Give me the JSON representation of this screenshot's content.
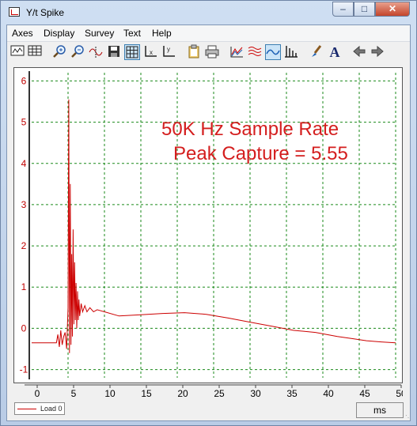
{
  "window": {
    "title": "Y/t Spike"
  },
  "menu": [
    "Axes",
    "Display",
    "Survey",
    "Text",
    "Help"
  ],
  "toolbar_icons": [
    "strip-chart-icon",
    "table-view-icon",
    "zoom-in-icon",
    "zoom-out-icon",
    "cursor-icon",
    "save-icon",
    "grid-icon",
    "x-axis-icon",
    "y-axis-icon",
    "clipboard-icon",
    "print-icon",
    "multi-trace-icon",
    "stacked-trace-icon",
    "single-trace-icon",
    "bar-icon",
    "paint-brush-icon",
    "text-icon",
    "back-arrow-icon",
    "forward-arrow-icon"
  ],
  "toolbar_labels": {
    "text": "A"
  },
  "annotation": {
    "line1": "50K Hz Sample Rate",
    "line2": "Peak Capture = 5.55"
  },
  "legend": {
    "label": "Load 0"
  },
  "units": "ms",
  "chart_data": {
    "type": "line",
    "xlim": [
      0,
      50
    ],
    "ylim": [
      -1.2,
      6.2
    ],
    "x_ticks": [
      0,
      5,
      10,
      15,
      20,
      25,
      30,
      35,
      40,
      45,
      50
    ],
    "y_ticks": [
      -1,
      0,
      1,
      2,
      3,
      4,
      5,
      6
    ],
    "grid": true,
    "series": [
      {
        "name": "Load 0",
        "color": "#cc0000",
        "x": [
          0,
          3.4,
          3.6,
          3.8,
          4.0,
          4.2,
          4.4,
          4.6,
          4.8,
          5.0,
          5.1,
          5.2,
          5.3,
          5.4,
          5.5,
          5.6,
          5.7,
          5.8,
          5.9,
          6.0,
          6.1,
          6.2,
          6.3,
          6.4,
          6.5,
          6.6,
          6.8,
          7.0,
          7.3,
          7.6,
          8.0,
          8.5,
          9.0,
          10,
          12,
          15,
          18,
          21,
          24,
          27,
          30,
          33,
          36,
          39,
          42,
          44,
          46,
          48,
          50
        ],
        "y": [
          -0.35,
          -0.35,
          -0.15,
          -0.45,
          -0.05,
          -0.4,
          -0.2,
          -0.1,
          -0.5,
          0.5,
          5.55,
          -0.6,
          3.5,
          -0.4,
          1.8,
          -0.2,
          2.4,
          0.1,
          1.6,
          0.2,
          1.1,
          0.0,
          0.9,
          0.2,
          0.7,
          0.3,
          0.6,
          0.4,
          0.55,
          0.4,
          0.5,
          0.4,
          0.45,
          0.4,
          0.3,
          0.33,
          0.36,
          0.38,
          0.34,
          0.25,
          0.15,
          0.05,
          -0.05,
          -0.1,
          -0.2,
          -0.25,
          -0.3,
          -0.33,
          -0.35
        ]
      }
    ]
  }
}
